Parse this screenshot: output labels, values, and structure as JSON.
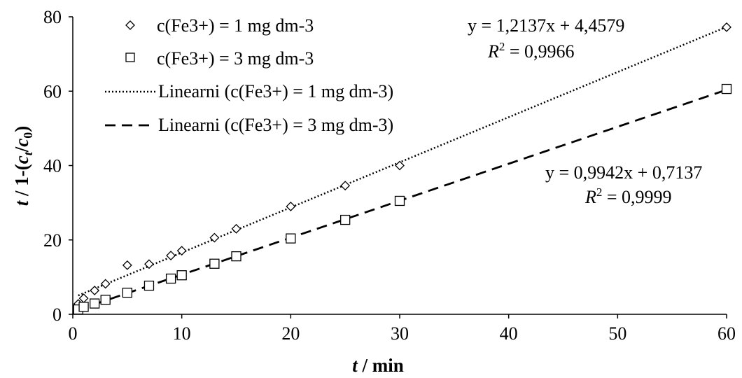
{
  "chart_data": {
    "type": "scatter",
    "xlabel": {
      "main": "t",
      "rest": " / min"
    },
    "ylabel": {
      "t": "t",
      "part1": " / 1-(",
      "c": "c",
      "t_sub": "t",
      "slash": "/",
      "c2": "c",
      "zero_sub": "0",
      "close": ")"
    },
    "xlim": [
      0,
      60
    ],
    "ylim": [
      0,
      80
    ],
    "xticks": [
      "0",
      "10",
      "20",
      "30",
      "40",
      "50",
      "60"
    ],
    "yticks": [
      "0",
      "20",
      "40",
      "60",
      "80"
    ],
    "grid": false,
    "legend_position": "top-left",
    "series": [
      {
        "name": "c(Fe3+) = 1 mg dm-3",
        "marker": "diamond",
        "x": [
          0.5,
          1,
          2,
          3,
          5,
          7,
          9,
          10,
          13,
          15,
          20,
          25,
          30,
          60
        ],
        "y": [
          2.8,
          4.3,
          6.4,
          8.2,
          13.2,
          13.5,
          15.8,
          17.1,
          20.6,
          23.0,
          29.0,
          34.6,
          40.0,
          77.2
        ]
      },
      {
        "name": "c(Fe3+) = 3 mg dm-3",
        "marker": "square",
        "x": [
          0.5,
          1,
          2,
          3,
          5,
          7,
          9,
          10,
          13,
          15,
          20,
          25,
          30,
          60
        ],
        "y": [
          1.3,
          2.0,
          2.9,
          3.9,
          5.8,
          7.7,
          9.6,
          10.5,
          13.6,
          15.6,
          20.4,
          25.4,
          30.5,
          60.6
        ]
      }
    ],
    "trendlines": [
      {
        "name": "Linearni (c(Fe3+) = 1 mg dm-3)",
        "style": "dotted",
        "slope": 1.2137,
        "intercept": 4.4579,
        "equation": "y = 1,2137x + 4,4579",
        "r2_label": "R",
        "r2_sup": "2",
        "r2_value": " = 0,9966"
      },
      {
        "name": "Linearni (c(Fe3+) = 3 mg dm-3)",
        "style": "dashed",
        "slope": 0.9942,
        "intercept": 0.7137,
        "equation": "y = 0,9942x + 0,7137",
        "r2_label": "R",
        "r2_sup": "2",
        "r2_value": " = 0,9999"
      }
    ]
  }
}
